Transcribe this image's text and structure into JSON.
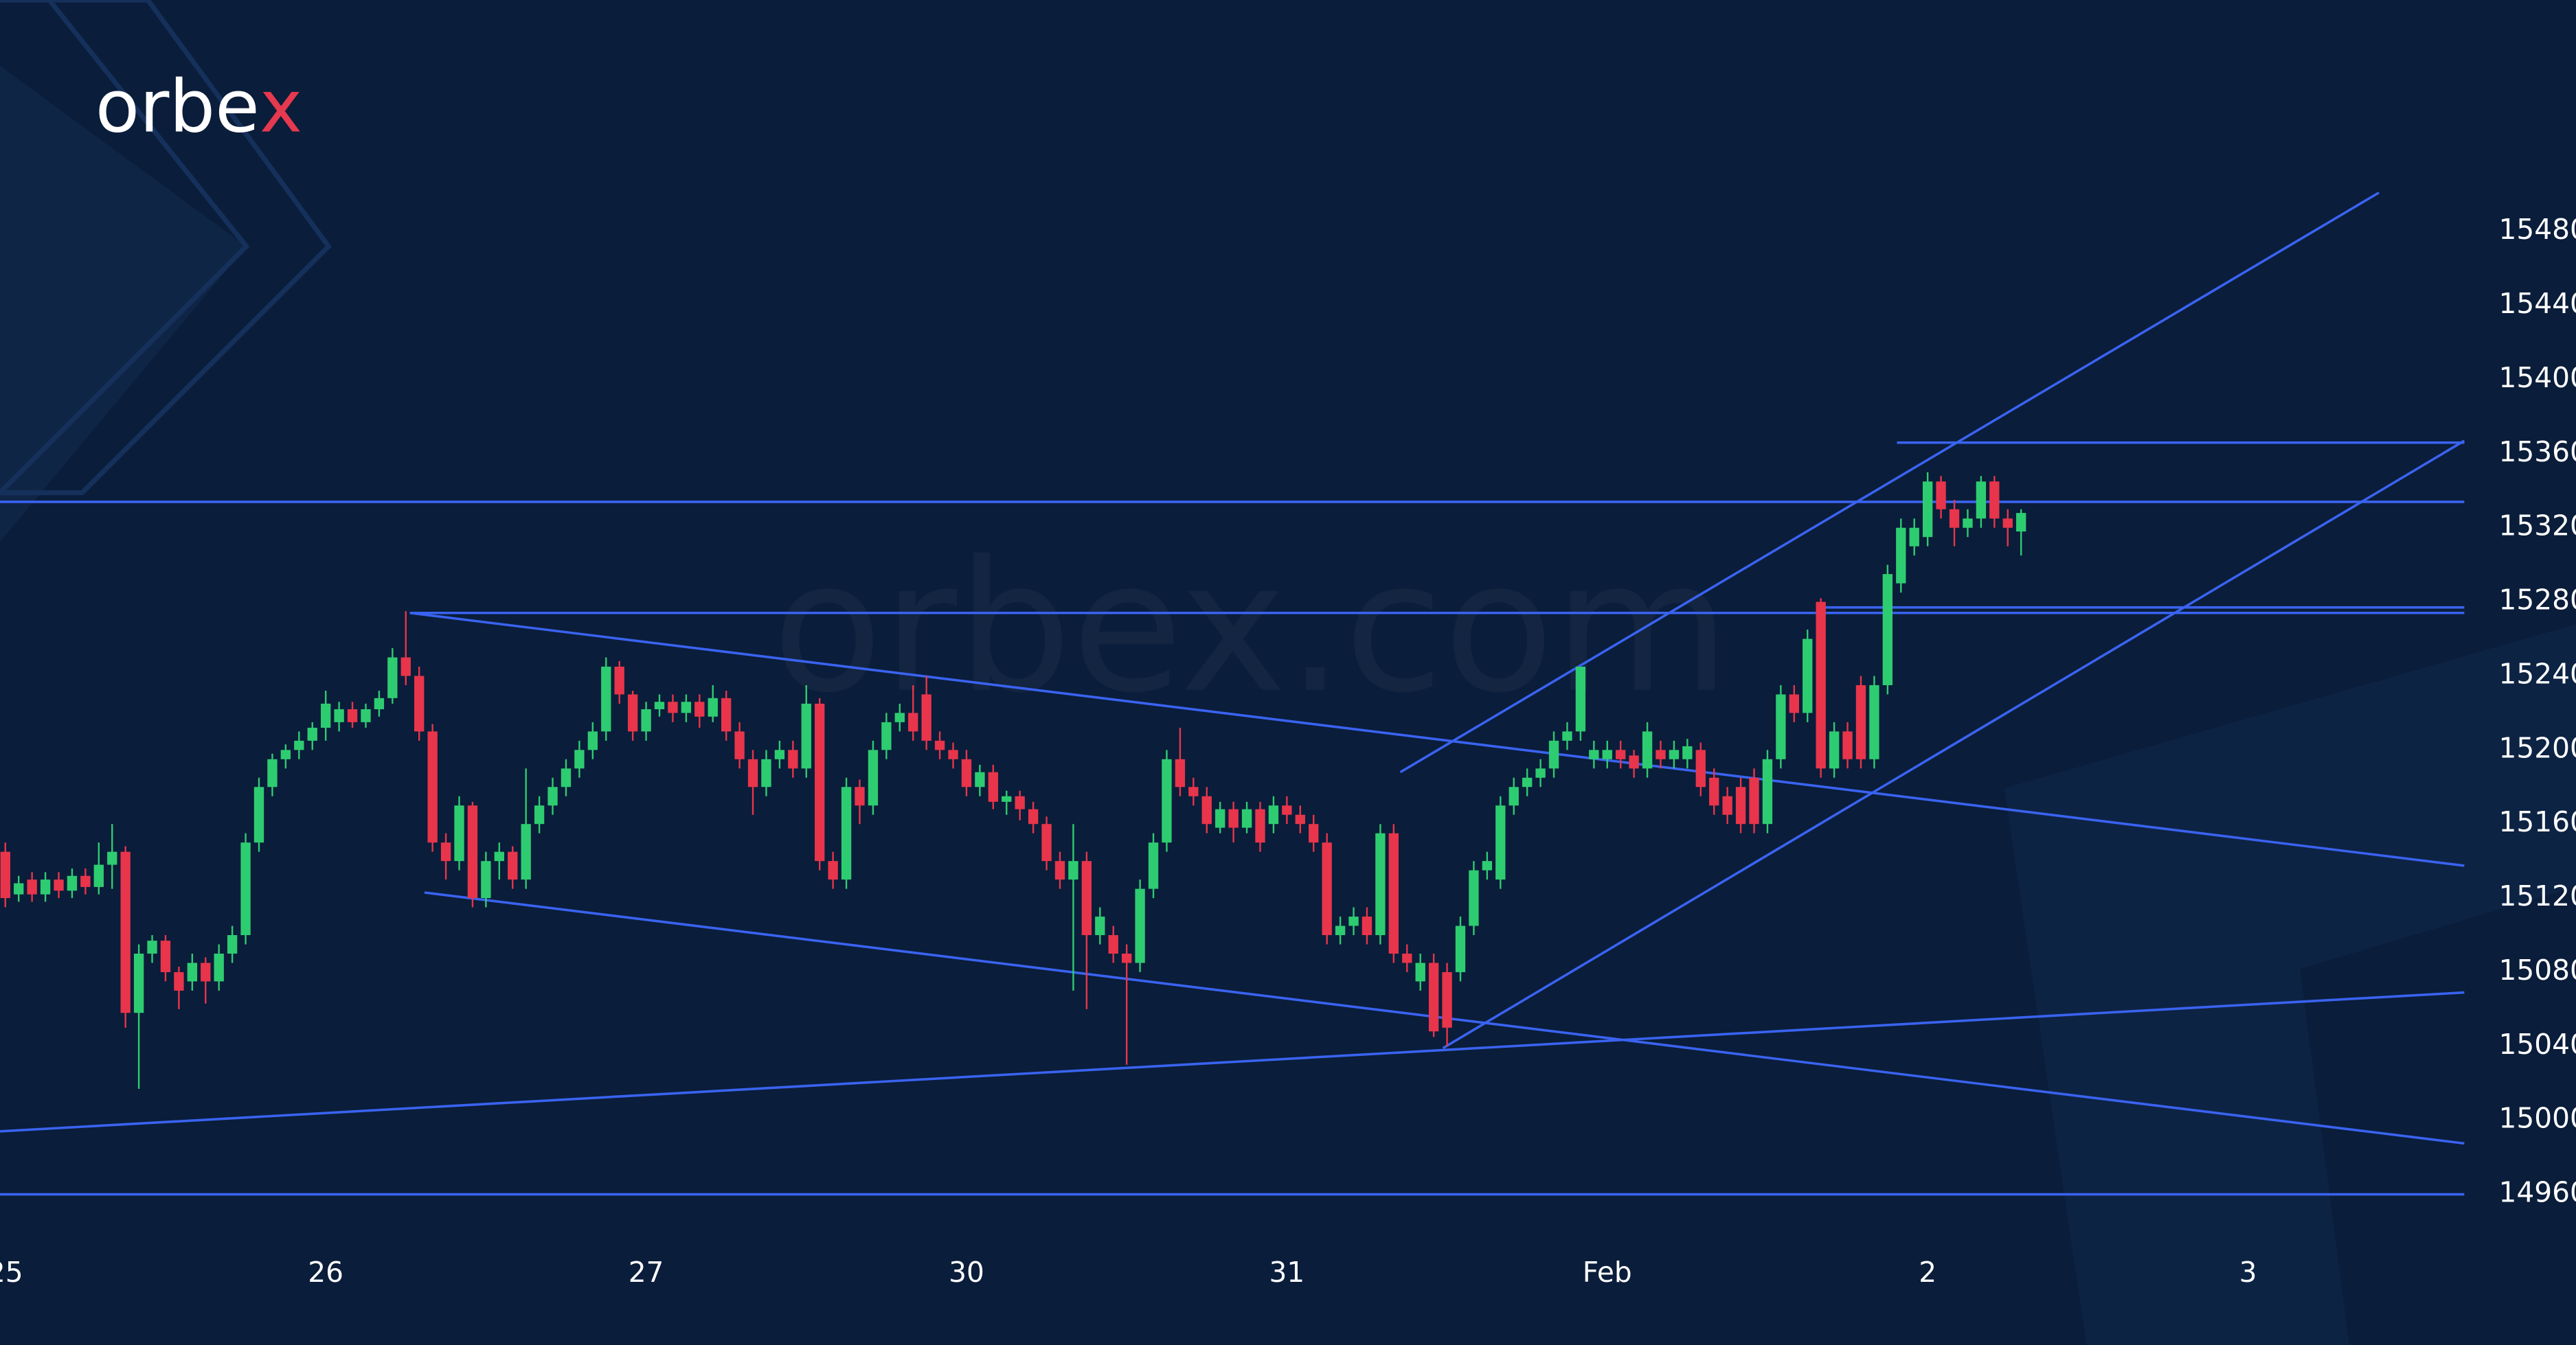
{
  "chart_data": {
    "type": "candlestick",
    "logo_text": "orbe",
    "logo_accent": "x",
    "watermark": "orbex.com",
    "up_color": "#2ecc71",
    "down_color": "#e8354b",
    "line_color": "#3a63f0",
    "xlim": [
      -0.4,
      184.2
    ],
    "ylim": [
      14931,
      15605
    ],
    "xticks": [
      {
        "value": 0,
        "label": "25"
      },
      {
        "value": 24,
        "label": "26"
      },
      {
        "value": 48,
        "label": "27"
      },
      {
        "value": 72,
        "label": "30"
      },
      {
        "value": 96,
        "label": "31"
      },
      {
        "value": 120,
        "label": "Feb"
      },
      {
        "value": 144,
        "label": "2"
      },
      {
        "value": 168,
        "label": "3"
      }
    ],
    "yticks": [
      14960,
      15000,
      15040,
      15080,
      15120,
      15160,
      15200,
      15240,
      15280,
      15320,
      15360,
      15400,
      15440,
      15480
    ],
    "x": [
      0,
      1,
      2,
      3,
      4,
      5,
      6,
      7,
      8,
      9,
      10,
      11,
      12,
      13,
      14,
      15,
      16,
      17,
      18,
      19,
      20,
      21,
      22,
      23,
      24,
      25,
      26,
      27,
      28,
      29,
      30,
      31,
      32,
      33,
      34,
      35,
      36,
      37,
      38,
      39,
      40,
      41,
      42,
      43,
      44,
      45,
      46,
      47,
      48,
      49,
      50,
      51,
      52,
      53,
      54,
      55,
      56,
      57,
      58,
      59,
      60,
      61,
      62,
      63,
      64,
      65,
      66,
      67,
      68,
      69,
      70,
      71,
      72,
      73,
      74,
      75,
      76,
      77,
      78,
      79,
      80,
      81,
      82,
      83,
      84,
      85,
      86,
      87,
      88,
      89,
      90,
      91,
      92,
      93,
      94,
      95,
      96,
      97,
      98,
      99,
      100,
      101,
      102,
      103,
      104,
      105,
      106,
      107,
      108,
      109,
      110,
      111,
      112,
      113,
      114,
      115,
      116,
      117,
      118,
      119,
      120,
      121,
      122,
      123,
      124,
      125,
      126,
      127,
      128,
      129,
      130,
      131,
      132,
      133,
      134,
      135,
      136,
      137,
      138,
      139,
      140,
      141,
      142,
      143,
      144,
      145,
      146,
      147,
      148,
      149,
      150,
      151
    ],
    "open": [
      15145,
      15122,
      15130,
      15122,
      15130,
      15124,
      15132,
      15126,
      15138,
      15145,
      15058,
      15090,
      15097,
      15080,
      15075,
      15085,
      15075,
      15090,
      15100,
      15150,
      15180,
      15195,
      15200,
      15205,
      15212,
      15215,
      15222,
      15215,
      15222,
      15228,
      15250,
      15240,
      15210,
      15150,
      15140,
      15170,
      15120,
      15140,
      15145,
      15130,
      15160,
      15170,
      15180,
      15190,
      15200,
      15210,
      15245,
      15230,
      15210,
      15222,
      15226,
      15220,
      15226,
      15218,
      15228,
      15210,
      15195,
      15180,
      15195,
      15200,
      15190,
      15225,
      15140,
      15130,
      15180,
      15170,
      15200,
      15215,
      15220,
      15230,
      15205,
      15200,
      15195,
      15180,
      15188,
      15172,
      15175,
      15168,
      15160,
      15140,
      15130,
      15140,
      15100,
      15100,
      15090,
      15085,
      15125,
      15150,
      15195,
      15180,
      15175,
      15158,
      15168,
      15158,
      15168,
      15160,
      15170,
      15165,
      15160,
      15150,
      15100,
      15105,
      15110,
      15100,
      15155,
      15090,
      15075,
      15085,
      15080,
      15080,
      15105,
      15135,
      15130,
      15170,
      15180,
      15185,
      15190,
      15205,
      15210,
      15195,
      15195,
      15200,
      15197,
      15190,
      15200,
      15195,
      15195,
      15200,
      15185,
      15175,
      15180,
      15185,
      15160,
      15195,
      15230,
      15220,
      15280,
      15190,
      15210,
      15235,
      15195,
      15235,
      15290,
      15310,
      15315,
      15345,
      15330,
      15320,
      15325,
      15345,
      15325,
      15318
    ],
    "high": [
      15150,
      15132,
      15134,
      15134,
      15134,
      15136,
      15136,
      15150,
      15160,
      15148,
      15095,
      15100,
      15100,
      15083,
      15090,
      15088,
      15095,
      15105,
      15155,
      15185,
      15198,
      15203,
      15210,
      15215,
      15232,
      15226,
      15226,
      15225,
      15232,
      15255,
      15275,
      15245,
      15214,
      15155,
      15175,
      15172,
      15145,
      15150,
      15148,
      15190,
      15175,
      15185,
      15195,
      15205,
      15215,
      15250,
      15248,
      15232,
      15226,
      15230,
      15230,
      15230,
      15230,
      15235,
      15232,
      15215,
      15200,
      15200,
      15205,
      15205,
      15235,
      15228,
      15145,
      15185,
      15184,
      15205,
      15220,
      15225,
      15235,
      15240,
      15210,
      15204,
      15200,
      15192,
      15192,
      15178,
      15178,
      15172,
      15164,
      15145,
      15160,
      15145,
      15115,
      15105,
      15095,
      15130,
      15155,
      15200,
      15212,
      15185,
      15180,
      15172,
      15172,
      15172,
      15172,
      15175,
      15175,
      15170,
      15165,
      15155,
      15110,
      15115,
      15115,
      15160,
      15160,
      15095,
      15090,
      15090,
      15085,
      15110,
      15140,
      15145,
      15175,
      15185,
      15190,
      15195,
      15210,
      15215,
      15245,
      15205,
      15205,
      15205,
      15200,
      15215,
      15205,
      15205,
      15206,
      15204,
      15190,
      15180,
      15185,
      15190,
      15200,
      15235,
      15235,
      15265,
      15282,
      15215,
      15215,
      15240,
      15240,
      15300,
      15325,
      15325,
      15350,
      15348,
      15335,
      15330,
      15348,
      15348,
      15330,
      15330
    ],
    "low": [
      15115,
      15118,
      15118,
      15118,
      15120,
      15120,
      15122,
      15122,
      15125,
      15050,
      15017,
      15085,
      15075,
      15060,
      15070,
      15063,
      15070,
      15085,
      15095,
      15145,
      15175,
      15190,
      15195,
      15200,
      15205,
      15210,
      15212,
      15212,
      15218,
      15225,
      15235,
      15205,
      15145,
      15130,
      15135,
      15115,
      15115,
      15130,
      15125,
      15125,
      15155,
      15165,
      15175,
      15185,
      15195,
      15205,
      15225,
      15205,
      15205,
      15218,
      15215,
      15215,
      15212,
      15215,
      15205,
      15190,
      15165,
      15175,
      15190,
      15185,
      15185,
      15135,
      15125,
      15125,
      15160,
      15165,
      15195,
      15210,
      15205,
      15200,
      15195,
      15190,
      15175,
      15175,
      15168,
      15165,
      15162,
      15155,
      15135,
      15125,
      15070,
      15060,
      15095,
      15085,
      15030,
      15080,
      15120,
      15145,
      15175,
      15170,
      15155,
      15155,
      15150,
      15155,
      15145,
      15155,
      15160,
      15155,
      15145,
      15095,
      15095,
      15100,
      15095,
      15095,
      15085,
      15080,
      15070,
      15045,
      15040,
      15075,
      15100,
      15130,
      15125,
      15165,
      15175,
      15180,
      15185,
      15200,
      15205,
      15190,
      15190,
      15190,
      15185,
      15185,
      15190,
      15190,
      15190,
      15175,
      15165,
      15160,
      15155,
      15155,
      15155,
      15190,
      15215,
      15215,
      15185,
      15185,
      15190,
      15190,
      15190,
      15230,
      15285,
      15305,
      15310,
      15325,
      15310,
      15315,
      15320,
      15320,
      15310,
      15305
    ],
    "close": [
      15120,
      15128,
      15122,
      15130,
      15124,
      15132,
      15126,
      15138,
      15145,
      15058,
      15090,
      15097,
      15080,
      15070,
      15085,
      15075,
      15090,
      15100,
      15150,
      15180,
      15195,
      15200,
      15205,
      15212,
      15225,
      15222,
      15215,
      15222,
      15228,
      15250,
      15240,
      15210,
      15150,
      15140,
      15170,
      15120,
      15140,
      15145,
      15130,
      15160,
      15170,
      15180,
      15190,
      15200,
      15210,
      15245,
      15230,
      15210,
      15222,
      15226,
      15220,
      15226,
      15218,
      15228,
      15210,
      15195,
      15180,
      15195,
      15200,
      15190,
      15225,
      15140,
      15130,
      15180,
      15170,
      15200,
      15215,
      15220,
      15210,
      15205,
      15200,
      15195,
      15180,
      15188,
      15172,
      15175,
      15168,
      15160,
      15140,
      15130,
      15140,
      15100,
      15110,
      15090,
      15085,
      15125,
      15150,
      15195,
      15180,
      15175,
      15160,
      15168,
      15158,
      15168,
      15150,
      15170,
      15165,
      15160,
      15150,
      15100,
      15105,
      15110,
      15100,
      15155,
      15090,
      15085,
      15085,
      15048,
      15050,
      15105,
      15135,
      15140,
      15170,
      15180,
      15185,
      15190,
      15205,
      15210,
      15245,
      15200,
      15200,
      15195,
      15190,
      15210,
      15195,
      15200,
      15202,
      15180,
      15170,
      15165,
      15160,
      15160,
      15195,
      15230,
      15220,
      15260,
      15190,
      15210,
      15195,
      15195,
      15235,
      15295,
      15320,
      15320,
      15345,
      15330,
      15320,
      15325,
      15345,
      15325,
      15320,
      15328
    ],
    "trendlines": [
      {
        "x": [
          -0.4,
          184.2
        ],
        "y": [
          15334,
          15334
        ]
      },
      {
        "x": [
          30.3,
          184.2
        ],
        "y": [
          15274,
          15274
        ]
      },
      {
        "x": [
          136,
          184.2
        ],
        "y": [
          15277,
          15277
        ]
      },
      {
        "x": [
          141.7,
          184.2
        ],
        "y": [
          15366,
          15366
        ]
      },
      {
        "x": [
          30.3,
          184.2
        ],
        "y": [
          15274,
          15137.5
        ]
      },
      {
        "x": [
          31.4,
          184.2
        ],
        "y": [
          15123,
          14987.5
        ]
      },
      {
        "x": [
          -0.4,
          184.2
        ],
        "y": [
          14994,
          15069
        ]
      },
      {
        "x": [
          -0.4,
          184.2
        ],
        "y": [
          14960,
          14960
        ]
      },
      {
        "x": [
          107.7,
          184.2
        ],
        "y": [
          15039,
          15367
        ]
      },
      {
        "x": [
          104.5,
          177.8
        ],
        "y": [
          15188,
          15501
        ]
      }
    ]
  }
}
